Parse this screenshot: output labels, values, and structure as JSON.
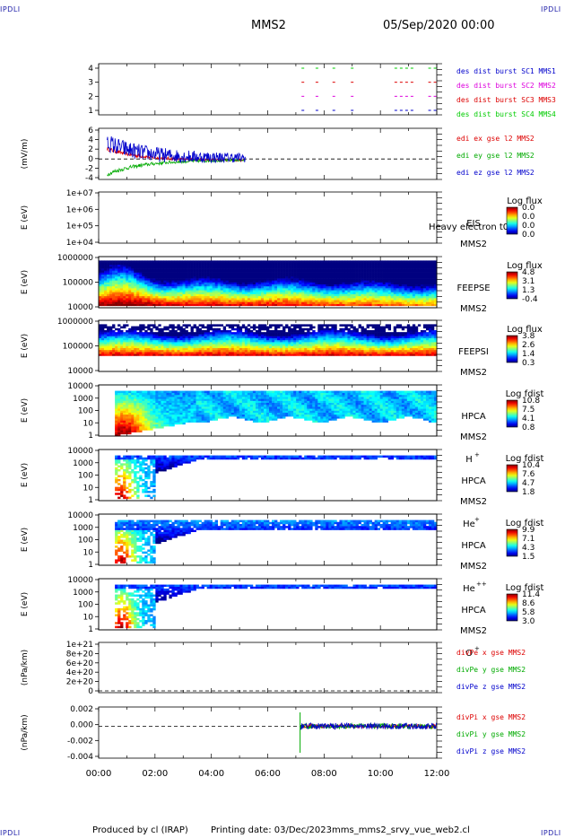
{
  "header": {
    "corner_label": "IPDLI",
    "spacecraft": "MMS2",
    "date_time": "05/Sep/2020 00:00"
  },
  "footer": {
    "credit": "Produced by cl (IRAP)",
    "printing_date": "Printing date: 03/Dec/2023",
    "filename": "mms_mms2_srvy_vue_web2.cl"
  },
  "chart_data": {
    "type": "stack",
    "x_axis": {
      "unit": "time",
      "range_hours": [
        0,
        12
      ],
      "ticks": [
        "00:00",
        "02:00",
        "04:00",
        "06:00",
        "08:00",
        "10:00",
        "12:00"
      ]
    },
    "panels": [
      {
        "id": "burst",
        "type": "timeline",
        "ylabel": "",
        "yticks": [
          "4",
          "3",
          "2",
          "1"
        ],
        "series": [
          {
            "name": "des dist burst SC1 MMS1",
            "color": "#0000cc",
            "level": 1,
            "segments": [
              [
                7.2,
                7.35
              ],
              [
                7.7,
                7.8
              ],
              [
                8.3,
                8.4
              ],
              [
                8.95,
                9.1
              ],
              [
                10.5,
                11.2
              ],
              [
                11.7,
                12.0
              ]
            ]
          },
          {
            "name": "des dist burst SC2 MMS2",
            "color": "#dd00dd",
            "level": 2,
            "segments": [
              [
                7.2,
                7.35
              ],
              [
                7.7,
                7.8
              ],
              [
                8.3,
                8.4
              ],
              [
                8.95,
                9.1
              ],
              [
                10.5,
                11.2
              ],
              [
                11.7,
                12.0
              ]
            ]
          },
          {
            "name": "des dist burst SC3 MMS3",
            "color": "#dd0000",
            "level": 3,
            "segments": [
              [
                7.2,
                7.35
              ],
              [
                7.7,
                7.8
              ],
              [
                8.3,
                8.4
              ],
              [
                8.95,
                9.1
              ],
              [
                10.5,
                11.2
              ],
              [
                11.7,
                12.0
              ]
            ]
          },
          {
            "name": "des dist burst SC4 MMS4",
            "color": "#00cc00",
            "level": 4,
            "segments": [
              [
                7.2,
                7.35
              ],
              [
                7.7,
                7.8
              ],
              [
                8.3,
                8.4
              ],
              [
                8.95,
                9.1
              ],
              [
                10.5,
                11.2
              ],
              [
                11.7,
                12.0
              ]
            ]
          }
        ]
      },
      {
        "id": "edi",
        "type": "line",
        "ylabel": "(mV/m)",
        "ylim": [
          -4,
          6
        ],
        "yticks": [
          "6",
          "4",
          "2",
          "0",
          "-2",
          "-4"
        ],
        "zero_line": true,
        "data_range_hours": [
          0.3,
          5.2
        ],
        "series": [
          {
            "name": "edi ex gse l2 MMS2",
            "color": "#dd0000",
            "start": 2.0,
            "end": -0.3,
            "noise": 0.4
          },
          {
            "name": "edi ey gse l2 MMS2",
            "color": "#00aa00",
            "start": -3.0,
            "end": -0.2,
            "noise": 0.4
          },
          {
            "name": "edi ez gse l2 MMS2",
            "color": "#0000cc",
            "start": 3.2,
            "end": 0.2,
            "noise": 1.8
          }
        ]
      },
      {
        "id": "eis",
        "type": "spectrogram",
        "ylabel": "E (eV)",
        "yticks": [
          "1e+07",
          "1e+06",
          "1e+05",
          "1e+04"
        ],
        "empty": true,
        "instrument": "EIS",
        "spacecraft": "MMS2",
        "species": "",
        "overlay_text": "Heavy electron t0",
        "colorbar_title": "Log flux",
        "colorbar_ticks": [
          "0.0",
          "0.0",
          "0.0",
          "0.0"
        ]
      },
      {
        "id": "feepse",
        "type": "spectrogram",
        "ylabel": "E (eV)",
        "yticks": [
          "1000000",
          "100000",
          "10000"
        ],
        "instrument": "FEEPSE",
        "spacecraft": "MMS2",
        "species": "",
        "colorbar_title": "Log flux",
        "colorbar_ticks": [
          "4.8",
          "3.1",
          "1.3",
          "-0.4"
        ],
        "data_range_hours": [
          0.0,
          12.0
        ]
      },
      {
        "id": "feepsi",
        "type": "spectrogram",
        "ylabel": "E (eV)",
        "yticks": [
          "1000000",
          "100000",
          "10000"
        ],
        "instrument": "FEEPSI",
        "spacecraft": "MMS2",
        "species": "",
        "colorbar_title": "Log flux",
        "colorbar_ticks": [
          "3.8",
          "2.6",
          "1.4",
          "0.3"
        ],
        "data_range_hours": [
          0.0,
          12.0
        ]
      },
      {
        "id": "hpca_h",
        "type": "spectrogram",
        "ylabel": "E (eV)",
        "yticks": [
          "10000",
          "1000",
          "100",
          "10",
          "1"
        ],
        "instrument": "HPCA",
        "spacecraft": "MMS2",
        "species": "H",
        "charge": "+",
        "colorbar_title": "Log fdist",
        "colorbar_ticks": [
          "10.8",
          "7.5",
          "4.1",
          "0.8"
        ],
        "data_range_hours": [
          0.55,
          12.0
        ]
      },
      {
        "id": "hpca_he1",
        "type": "spectrogram",
        "ylabel": "E (eV)",
        "yticks": [
          "10000",
          "1000",
          "100",
          "10",
          "1"
        ],
        "instrument": "HPCA",
        "spacecraft": "MMS2",
        "species": "He",
        "charge": "+",
        "colorbar_title": "Log fdist",
        "colorbar_ticks": [
          "10.4",
          "7.6",
          "4.7",
          "1.8"
        ],
        "data_range_hours": [
          0.55,
          12.0
        ]
      },
      {
        "id": "hpca_he2",
        "type": "spectrogram",
        "ylabel": "E (eV)",
        "yticks": [
          "10000",
          "1000",
          "100",
          "10",
          "1"
        ],
        "instrument": "HPCA",
        "spacecraft": "MMS2",
        "species": "He",
        "charge": "++",
        "colorbar_title": "Log fdist",
        "colorbar_ticks": [
          "9.9",
          "7.1",
          "4.3",
          "1.5"
        ],
        "data_range_hours": [
          0.55,
          12.0
        ]
      },
      {
        "id": "hpca_o",
        "type": "spectrogram",
        "ylabel": "E (eV)",
        "yticks": [
          "10000",
          "1000",
          "100",
          "10",
          "1"
        ],
        "instrument": "HPCA",
        "spacecraft": "MMS2",
        "species": "O",
        "charge": "+",
        "colorbar_title": "Log fdist",
        "colorbar_ticks": [
          "11.4",
          "8.6",
          "5.8",
          "3.0"
        ],
        "data_range_hours": [
          0.55,
          12.0
        ]
      },
      {
        "id": "divpe",
        "type": "line",
        "ylabel": "(nPa/km)",
        "yticks": [
          "1e+21",
          "8e+20",
          "6e+20",
          "4e+20",
          "2e+20",
          "0"
        ],
        "empty": true,
        "zero_line": true,
        "series": [
          {
            "name": "divPe x gse MMS2",
            "color": "#dd0000"
          },
          {
            "name": "divPe y gse MMS2",
            "color": "#00aa00"
          },
          {
            "name": "divPe z gse MMS2",
            "color": "#0000cc"
          }
        ]
      },
      {
        "id": "divpi",
        "type": "line",
        "ylabel": "(nPa/km)",
        "ylim": [
          -0.005,
          0.003
        ],
        "yticks": [
          "0.002",
          "0.000",
          "-0.002",
          "-0.004"
        ],
        "zero_line": true,
        "data_range_hours": [
          7.15,
          12.0
        ],
        "series": [
          {
            "name": "divPi x gse MMS2",
            "color": "#dd0000",
            "noise": 0.0003
          },
          {
            "name": "divPi y gse MMS2",
            "color": "#00aa00",
            "noise": 0.0004
          },
          {
            "name": "divPi z gse MMS2",
            "color": "#0000cc",
            "noise": 0.0005
          }
        ]
      }
    ]
  }
}
